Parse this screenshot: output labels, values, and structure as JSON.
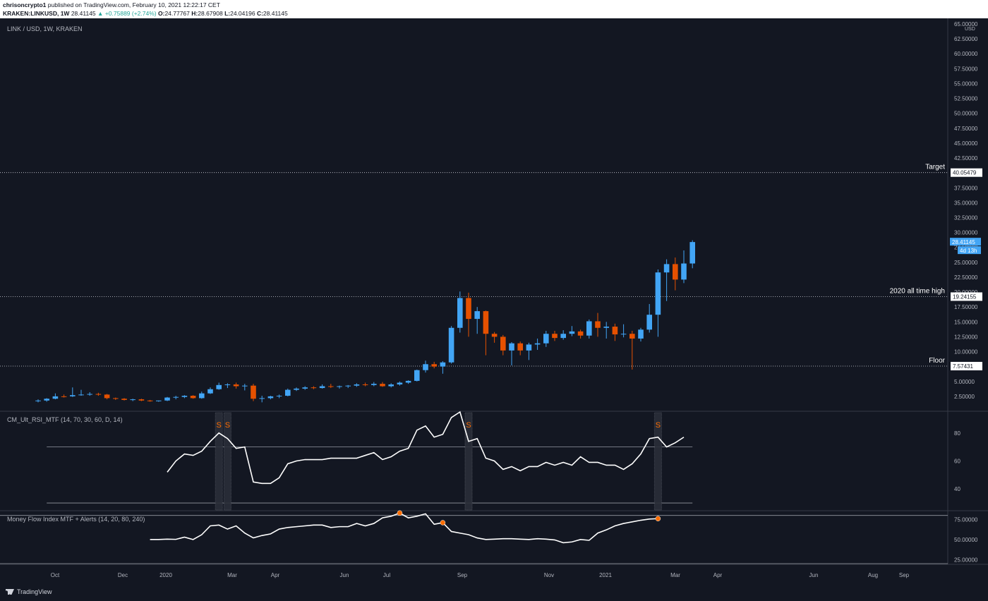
{
  "header": {
    "publisher": "chrisoncrypto1",
    "published_text": "published on TradingView.com, February 10, 2021 12:22:17 CET",
    "symbol": "KRAKEN:LINKUSD, 1W",
    "last": "28.41145",
    "change": "+0.75889 (+2.74%)",
    "ohlc": {
      "o": "24.77767",
      "h": "28.67908",
      "l": "24.04196",
      "c": "28.41145"
    }
  },
  "footer": {
    "brand": "TradingView"
  },
  "colors": {
    "bg": "#131722",
    "up": "#42a5f5",
    "down": "#e65100",
    "line": "#ffffff",
    "grid": "#2a2e39",
    "text": "#b2b5be",
    "marker": "#ff6d00"
  },
  "chart_data": [
    {
      "type": "candlestick",
      "title": "LINK / USD, 1W, KRAKEN",
      "axis_unit": "USD",
      "ylim": [
        0,
        65
      ],
      "y_ticks": [
        "2.50000",
        "5.00000",
        "7.50000",
        "10.00000",
        "12.50000",
        "15.00000",
        "17.50000",
        "20.00000",
        "22.50000",
        "25.00000",
        "27.50000",
        "30.00000",
        "32.50000",
        "35.00000",
        "37.50000",
        "40.00000",
        "42.50000",
        "45.00000",
        "47.50000",
        "50.00000",
        "52.50000",
        "55.00000",
        "57.50000",
        "60.00000",
        "62.50000",
        "65.00000"
      ],
      "x_ticks": [
        "Oct",
        "Dec",
        "2020",
        "Mar",
        "Apr",
        "Jun",
        "Jul",
        "Sep",
        "Nov",
        "2021",
        "Mar",
        "Apr",
        "Jun",
        "Aug",
        "Sep"
      ],
      "price_tags": [
        {
          "value": "28.41145",
          "kind": "last"
        },
        {
          "value": "4d 13h",
          "kind": "countdown"
        }
      ],
      "levels": [
        {
          "label": "Target",
          "price": 40.05479,
          "price_label": "40.05479"
        },
        {
          "label": "2020 all time high",
          "price": 19.24155,
          "price_label": "19.24155"
        },
        {
          "label": "Floor",
          "price": 7.57431,
          "price_label": "7.57431"
        }
      ],
      "candles": [
        {
          "o": 1.7,
          "h": 2.0,
          "l": 1.5,
          "c": 1.8
        },
        {
          "o": 1.8,
          "h": 2.2,
          "l": 1.6,
          "c": 2.1
        },
        {
          "o": 2.1,
          "h": 3.0,
          "l": 2.0,
          "c": 2.5
        },
        {
          "o": 2.5,
          "h": 2.8,
          "l": 2.3,
          "c": 2.4
        },
        {
          "o": 2.5,
          "h": 4.0,
          "l": 2.4,
          "c": 2.7
        },
        {
          "o": 2.7,
          "h": 3.6,
          "l": 2.6,
          "c": 2.8
        },
        {
          "o": 2.8,
          "h": 3.2,
          "l": 2.6,
          "c": 2.9
        },
        {
          "o": 2.9,
          "h": 3.1,
          "l": 2.6,
          "c": 2.8
        },
        {
          "o": 2.8,
          "h": 2.9,
          "l": 2.0,
          "c": 2.2
        },
        {
          "o": 2.2,
          "h": 2.3,
          "l": 1.9,
          "c": 2.1
        },
        {
          "o": 2.1,
          "h": 2.2,
          "l": 1.8,
          "c": 1.9
        },
        {
          "o": 1.9,
          "h": 2.1,
          "l": 1.7,
          "c": 2.0
        },
        {
          "o": 2.0,
          "h": 2.1,
          "l": 1.7,
          "c": 1.8
        },
        {
          "o": 1.8,
          "h": 1.9,
          "l": 1.6,
          "c": 1.7
        },
        {
          "o": 1.7,
          "h": 1.8,
          "l": 1.6,
          "c": 1.8
        },
        {
          "o": 1.8,
          "h": 2.4,
          "l": 1.7,
          "c": 2.3
        },
        {
          "o": 2.3,
          "h": 2.6,
          "l": 2.0,
          "c": 2.4
        },
        {
          "o": 2.4,
          "h": 2.7,
          "l": 2.2,
          "c": 2.6
        },
        {
          "o": 2.6,
          "h": 2.7,
          "l": 2.1,
          "c": 2.2
        },
        {
          "o": 2.2,
          "h": 3.3,
          "l": 2.1,
          "c": 3.0
        },
        {
          "o": 3.0,
          "h": 4.0,
          "l": 2.9,
          "c": 3.7
        },
        {
          "o": 3.7,
          "h": 4.8,
          "l": 3.6,
          "c": 4.4
        },
        {
          "o": 4.4,
          "h": 4.7,
          "l": 3.9,
          "c": 4.5
        },
        {
          "o": 4.5,
          "h": 4.8,
          "l": 3.8,
          "c": 4.2
        },
        {
          "o": 4.2,
          "h": 4.6,
          "l": 3.5,
          "c": 4.3
        },
        {
          "o": 4.3,
          "h": 4.6,
          "l": 1.7,
          "c": 2.1
        },
        {
          "o": 2.1,
          "h": 2.6,
          "l": 1.5,
          "c": 2.2
        },
        {
          "o": 2.2,
          "h": 2.6,
          "l": 2.0,
          "c": 2.5
        },
        {
          "o": 2.5,
          "h": 2.8,
          "l": 2.2,
          "c": 2.6
        },
        {
          "o": 2.6,
          "h": 3.8,
          "l": 2.5,
          "c": 3.6
        },
        {
          "o": 3.6,
          "h": 4.0,
          "l": 3.4,
          "c": 3.8
        },
        {
          "o": 3.8,
          "h": 4.2,
          "l": 3.6,
          "c": 4.0
        },
        {
          "o": 4.0,
          "h": 4.2,
          "l": 3.7,
          "c": 3.9
        },
        {
          "o": 3.9,
          "h": 4.5,
          "l": 3.8,
          "c": 4.2
        },
        {
          "o": 4.2,
          "h": 4.6,
          "l": 3.9,
          "c": 4.1
        },
        {
          "o": 4.1,
          "h": 4.3,
          "l": 3.8,
          "c": 4.2
        },
        {
          "o": 4.2,
          "h": 4.4,
          "l": 3.9,
          "c": 4.3
        },
        {
          "o": 4.3,
          "h": 4.7,
          "l": 4.1,
          "c": 4.5
        },
        {
          "o": 4.5,
          "h": 4.8,
          "l": 4.2,
          "c": 4.4
        },
        {
          "o": 4.4,
          "h": 4.9,
          "l": 4.2,
          "c": 4.6
        },
        {
          "o": 4.6,
          "h": 4.9,
          "l": 4.1,
          "c": 4.2
        },
        {
          "o": 4.2,
          "h": 4.7,
          "l": 4.0,
          "c": 4.5
        },
        {
          "o": 4.5,
          "h": 5.0,
          "l": 4.3,
          "c": 4.8
        },
        {
          "o": 4.8,
          "h": 5.2,
          "l": 4.6,
          "c": 5.1
        },
        {
          "o": 5.1,
          "h": 7.0,
          "l": 5.0,
          "c": 6.9
        },
        {
          "o": 6.9,
          "h": 8.5,
          "l": 6.5,
          "c": 7.9
        },
        {
          "o": 7.9,
          "h": 8.3,
          "l": 7.2,
          "c": 7.5
        },
        {
          "o": 7.5,
          "h": 8.4,
          "l": 6.3,
          "c": 8.2
        },
        {
          "o": 8.2,
          "h": 14.3,
          "l": 8.0,
          "c": 14.0
        },
        {
          "o": 14.0,
          "h": 20.1,
          "l": 13.2,
          "c": 19.0
        },
        {
          "o": 19.0,
          "h": 19.9,
          "l": 12.5,
          "c": 15.5
        },
        {
          "o": 15.5,
          "h": 17.5,
          "l": 13.0,
          "c": 16.8
        },
        {
          "o": 16.8,
          "h": 16.9,
          "l": 9.4,
          "c": 13.0
        },
        {
          "o": 13.0,
          "h": 13.3,
          "l": 11.5,
          "c": 12.5
        },
        {
          "o": 12.5,
          "h": 12.8,
          "l": 9.4,
          "c": 10.2
        },
        {
          "o": 10.2,
          "h": 11.6,
          "l": 7.7,
          "c": 11.4
        },
        {
          "o": 11.4,
          "h": 11.7,
          "l": 9.4,
          "c": 10.2
        },
        {
          "o": 10.2,
          "h": 11.5,
          "l": 8.6,
          "c": 11.2
        },
        {
          "o": 11.2,
          "h": 12.2,
          "l": 10.3,
          "c": 11.4
        },
        {
          "o": 11.4,
          "h": 13.5,
          "l": 10.8,
          "c": 13.0
        },
        {
          "o": 13.0,
          "h": 13.5,
          "l": 11.8,
          "c": 12.3
        },
        {
          "o": 12.3,
          "h": 13.6,
          "l": 12.0,
          "c": 13.0
        },
        {
          "o": 13.0,
          "h": 14.3,
          "l": 12.6,
          "c": 13.4
        },
        {
          "o": 13.4,
          "h": 13.7,
          "l": 12.2,
          "c": 12.7
        },
        {
          "o": 12.7,
          "h": 15.4,
          "l": 12.2,
          "c": 15.1
        },
        {
          "o": 15.1,
          "h": 16.5,
          "l": 12.5,
          "c": 14.0
        },
        {
          "o": 14.0,
          "h": 15.0,
          "l": 12.2,
          "c": 14.2
        },
        {
          "o": 14.2,
          "h": 14.7,
          "l": 11.8,
          "c": 12.9
        },
        {
          "o": 12.9,
          "h": 14.6,
          "l": 12.4,
          "c": 13.0
        },
        {
          "o": 13.0,
          "h": 13.5,
          "l": 7.0,
          "c": 12.2
        },
        {
          "o": 12.2,
          "h": 14.0,
          "l": 11.7,
          "c": 13.7
        },
        {
          "o": 13.7,
          "h": 18.0,
          "l": 13.2,
          "c": 16.2
        },
        {
          "o": 16.2,
          "h": 23.8,
          "l": 12.5,
          "c": 23.3
        },
        {
          "o": 23.3,
          "h": 25.5,
          "l": 18.5,
          "c": 24.7
        },
        {
          "o": 24.7,
          "h": 25.8,
          "l": 20.3,
          "c": 22.1
        },
        {
          "o": 22.1,
          "h": 27.0,
          "l": 21.5,
          "c": 24.8
        },
        {
          "o": 24.8,
          "h": 28.7,
          "l": 24.0,
          "c": 28.4
        }
      ]
    },
    {
      "type": "line",
      "title": "CM_Ult_RSI_MTF (14, 70, 30, 60, D, 14)",
      "ylim": [
        25,
        95
      ],
      "y_ticks": [
        "40",
        "60",
        "80"
      ],
      "hlines": [
        70,
        30
      ],
      "start_index": 15,
      "values": [
        52,
        60,
        65,
        64,
        67,
        74,
        80,
        76,
        69,
        70,
        45,
        44,
        44,
        48,
        58,
        60,
        61,
        61,
        61,
        62,
        62,
        62,
        62,
        64,
        66,
        61,
        63,
        67,
        69,
        82,
        85,
        77,
        79,
        91,
        95,
        74,
        76,
        62,
        60,
        54,
        56,
        53,
        56,
        56,
        59,
        57,
        59,
        57,
        63,
        59,
        59,
        57,
        57,
        54,
        58,
        65,
        76,
        77,
        70,
        73,
        77
      ],
      "signal_markers": {
        "label": "S",
        "indices": [
          21,
          22,
          50,
          72
        ]
      }
    },
    {
      "type": "line",
      "title": "Money Flow Index MTF + Alerts (14, 20, 80, 240)",
      "ylim": [
        20,
        85
      ],
      "y_ticks": [
        "25.00000",
        "50.00000",
        "75.00000"
      ],
      "hlines": [
        80,
        20
      ],
      "start_index": 13,
      "values": [
        50,
        50,
        50.5,
        50.2,
        53,
        50,
        56,
        67,
        68,
        63,
        67,
        58,
        52,
        55,
        57,
        63,
        65,
        66,
        67,
        68,
        68,
        65,
        66,
        66,
        70,
        67,
        70,
        77,
        79,
        83,
        77,
        79,
        82,
        69,
        71,
        60,
        58,
        56,
        52,
        50,
        50.5,
        51,
        51,
        50.5,
        50,
        51,
        50.5,
        49.5,
        46,
        47,
        50,
        49,
        58,
        62,
        67,
        70,
        72,
        74,
        75.5,
        76
      ],
      "alert_markers": {
        "indices": [
          42,
          47,
          72
        ]
      }
    }
  ]
}
